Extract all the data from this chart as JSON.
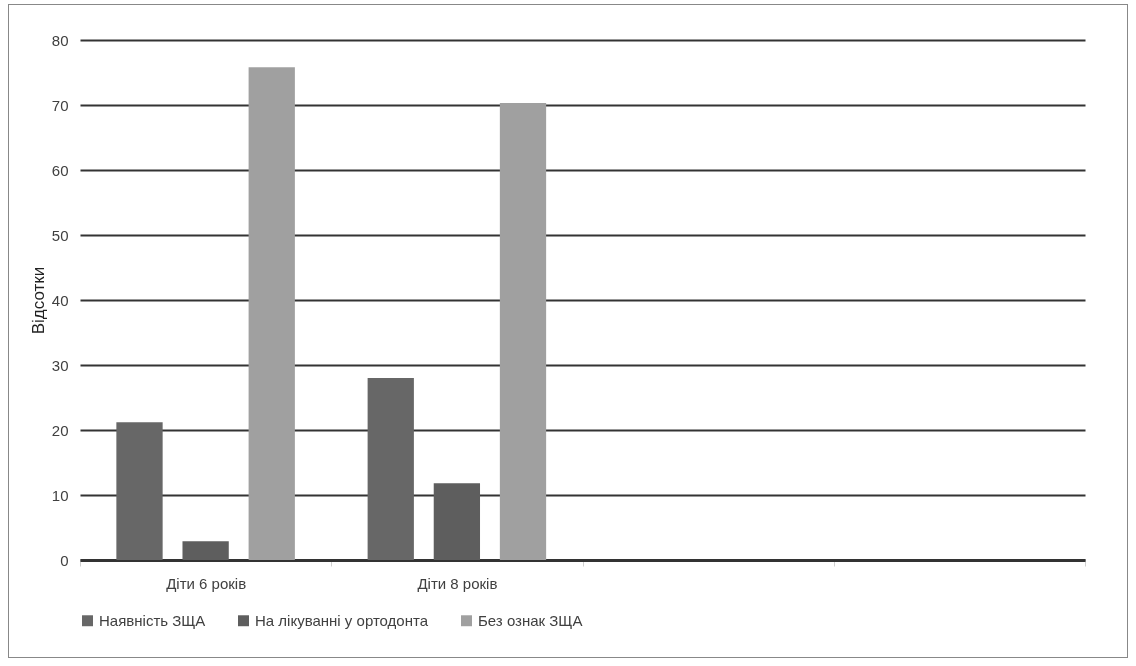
{
  "chart_data": {
    "type": "bar",
    "ylabel": "Відсотки",
    "categories": [
      "Діти 6 років",
      "Діти 8 років",
      null,
      null
    ],
    "series": [
      {
        "name": "Наявність ЗЩА",
        "color": "#676767",
        "values": [
          21.2,
          28.0,
          null,
          null
        ]
      },
      {
        "name": "На лікуванні у ортодонта",
        "color": "#5e5e5e",
        "values": [
          2.9,
          11.8,
          null,
          null
        ]
      },
      {
        "name": "Без ознак ЗЩА",
        "color": "#a0a0a0",
        "values": [
          75.8,
          70.3,
          null,
          null
        ]
      }
    ],
    "ylim": [
      0,
      80
    ],
    "yticks": [
      0,
      10,
      20,
      30,
      40,
      50,
      60,
      70,
      80
    ],
    "grid": "y",
    "legend": "bottom"
  }
}
